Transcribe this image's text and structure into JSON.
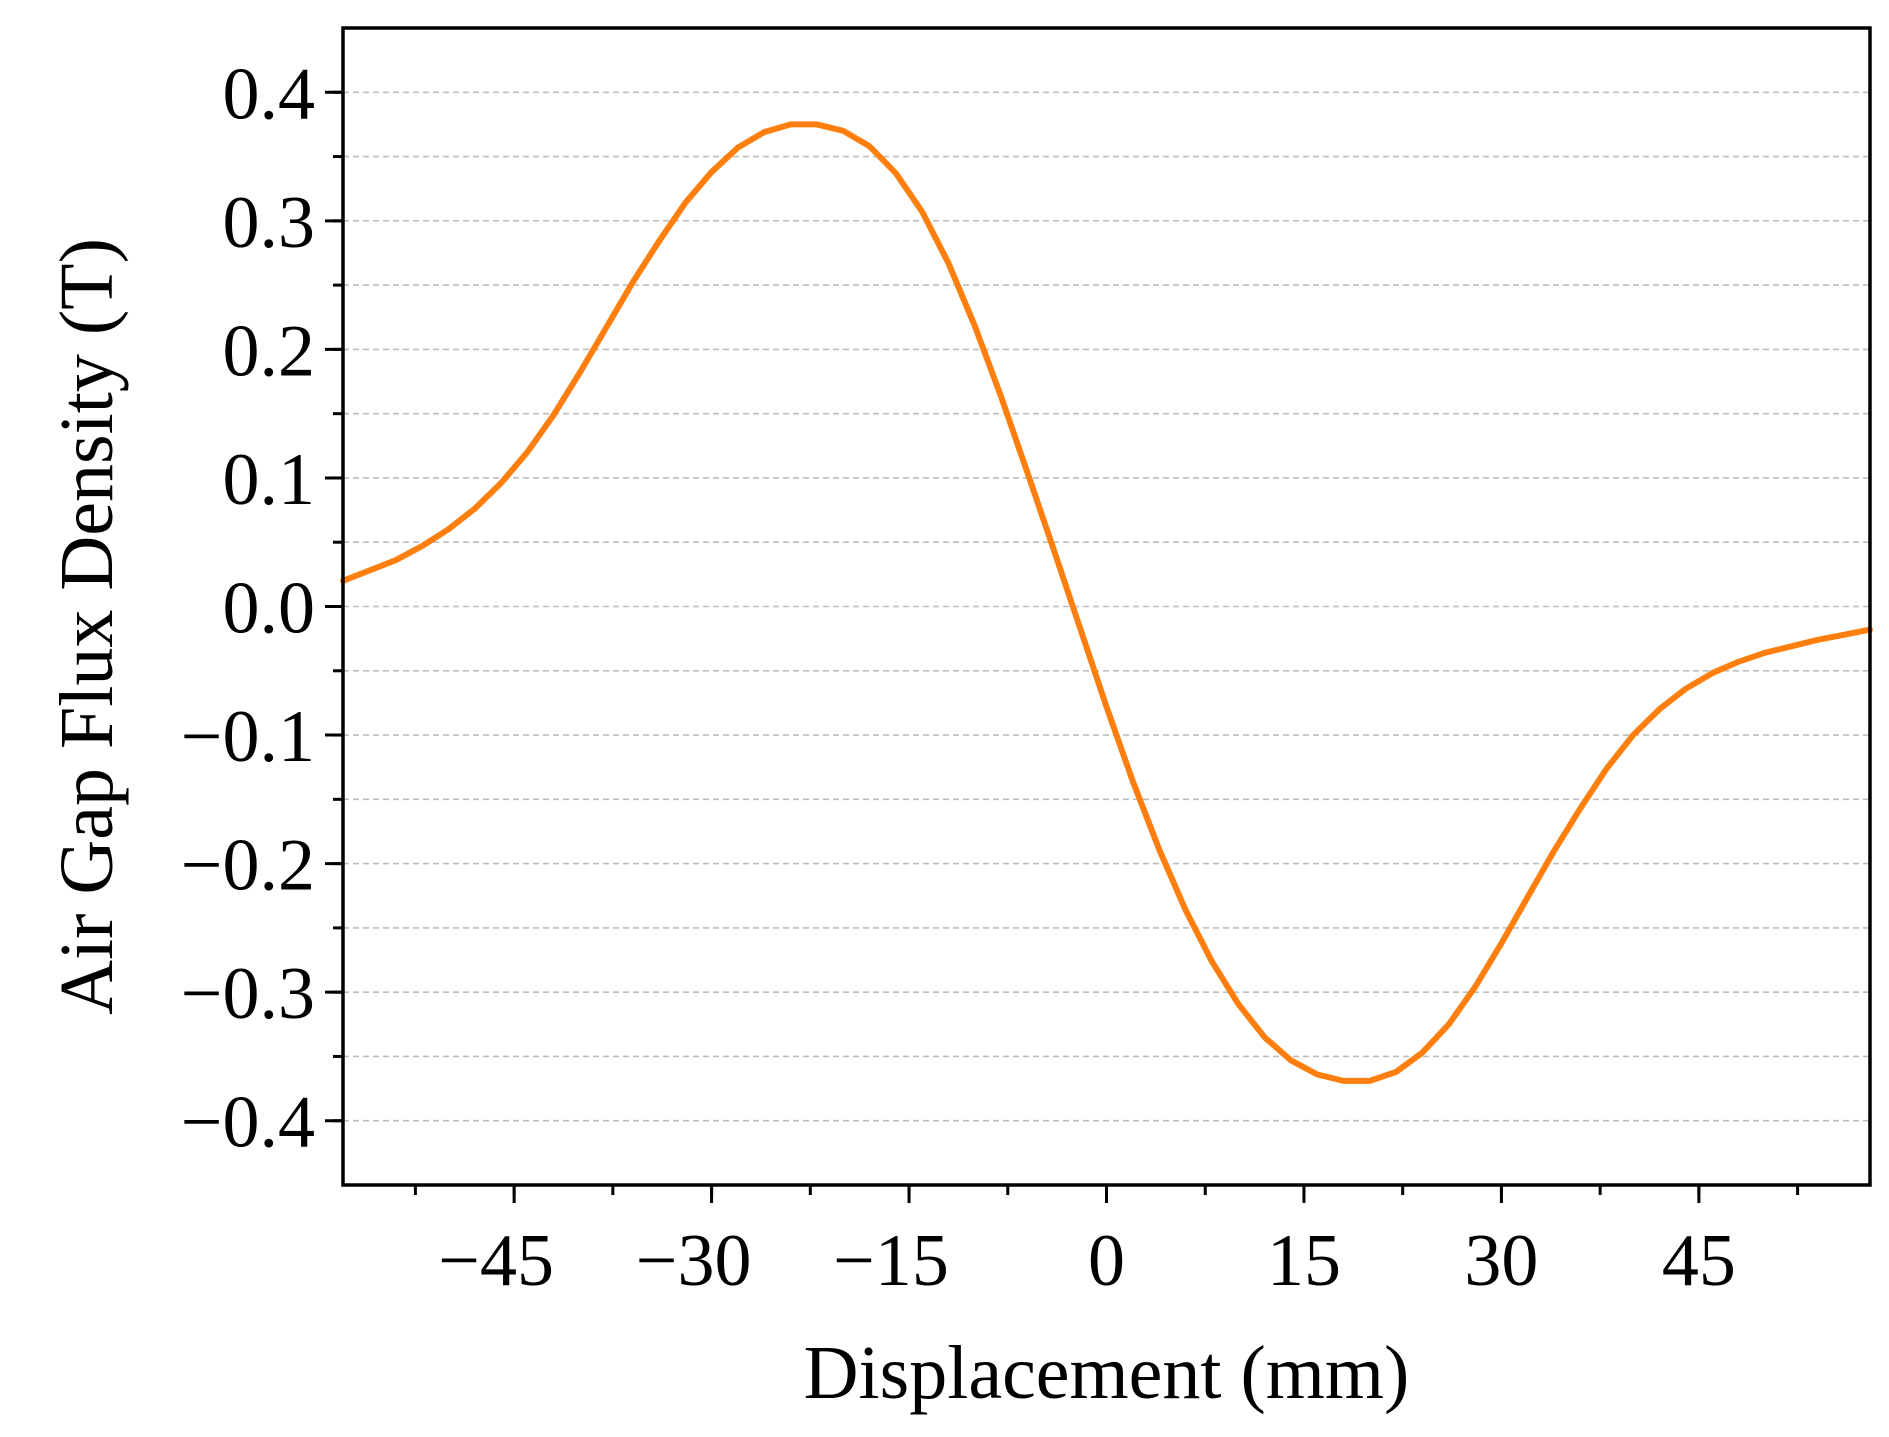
{
  "chart_data": {
    "type": "line",
    "title": "",
    "xlabel": "Displacement (mm)",
    "ylabel": "Air Gap Flux Density (T)",
    "xlim": [
      -58,
      58
    ],
    "ylim": [
      -0.45,
      0.45
    ],
    "x_ticks": [
      -45,
      -30,
      -15,
      0,
      15,
      30,
      45
    ],
    "x_tick_labels": [
      "−45",
      "−30",
      "−15",
      "0",
      "15",
      "30",
      "45"
    ],
    "y_ticks": [
      0.4,
      0.3,
      0.2,
      0.1,
      0.0,
      -0.1,
      -0.2,
      -0.3,
      -0.4
    ],
    "y_tick_labels": [
      "0.4",
      "0.3",
      "0.2",
      "0.1",
      "0.0",
      "−0.1",
      "−0.2",
      "−0.3",
      "−0.4"
    ],
    "x_minor_step": 7.5,
    "y_minor_step": 0.05,
    "grid": true,
    "legend": "none",
    "series": [
      {
        "color": "#ff7f0e",
        "x": [
          -58,
          -56,
          -54,
          -52,
          -50,
          -48,
          -46,
          -44,
          -42,
          -40,
          -38,
          -36,
          -34,
          -32,
          -30,
          -28,
          -26,
          -24,
          -22,
          -20,
          -18,
          -16,
          -14,
          -12,
          -10,
          -8,
          -6,
          -4,
          -2,
          0,
          2,
          4,
          6,
          8,
          10,
          12,
          14,
          16,
          18,
          20,
          22,
          24,
          26,
          28,
          30,
          32,
          34,
          36,
          38,
          40,
          42,
          44,
          46,
          48,
          50,
          52,
          54,
          56,
          58
        ],
        "y": [
          0.02,
          0.028,
          0.036,
          0.047,
          0.06,
          0.076,
          0.096,
          0.12,
          0.149,
          0.182,
          0.217,
          0.252,
          0.284,
          0.314,
          0.338,
          0.357,
          0.369,
          0.375,
          0.375,
          0.37,
          0.358,
          0.337,
          0.307,
          0.267,
          0.218,
          0.163,
          0.104,
          0.044,
          -0.017,
          -0.078,
          -0.136,
          -0.189,
          -0.236,
          -0.276,
          -0.309,
          -0.335,
          -0.353,
          -0.364,
          -0.369,
          -0.369,
          -0.362,
          -0.347,
          -0.325,
          -0.296,
          -0.262,
          -0.226,
          -0.19,
          -0.157,
          -0.126,
          -0.1,
          -0.08,
          -0.064,
          -0.052,
          -0.043,
          -0.036,
          -0.031,
          -0.026,
          -0.022,
          -0.018
        ]
      }
    ]
  }
}
